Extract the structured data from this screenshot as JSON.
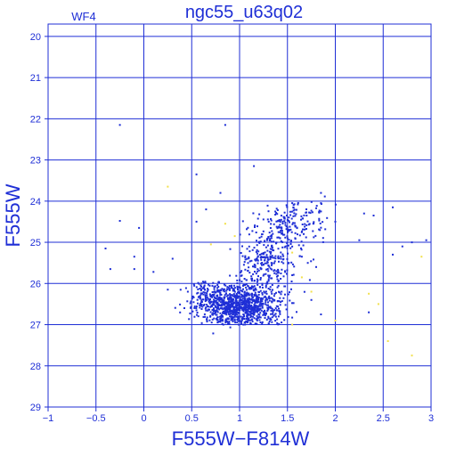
{
  "chart_data": {
    "type": "scatter",
    "title": "ngc55_u63q02",
    "panel_label": "WF4",
    "xlabel": "F555W−F814W",
    "ylabel": "F555W",
    "xlim": [
      -1,
      3
    ],
    "ylim": [
      29,
      19.7
    ],
    "xticks": [
      -1,
      -0.5,
      0,
      0.5,
      1,
      1.5,
      2,
      2.5,
      3
    ],
    "xtick_labels": [
      "−1",
      "−0.5",
      "0",
      "0.5",
      "1",
      "1.5",
      "2",
      "2.5",
      "3"
    ],
    "yticks": [
      20,
      21,
      22,
      23,
      24,
      25,
      26,
      27,
      28,
      29
    ],
    "ytick_labels": [
      "20",
      "21",
      "22",
      "23",
      "24",
      "25",
      "26",
      "27",
      "28",
      "29"
    ],
    "grid": true,
    "y_inverted": true,
    "colors": {
      "axis": "#1f2fd6",
      "primary_points": "#1f2fd6",
      "secondary_points": "#f2e04a"
    },
    "series": [
      {
        "color": "#1f2fd6",
        "points": [
          [
            -0.25,
            22.15
          ],
          [
            -0.25,
            24.48
          ],
          [
            -0.4,
            25.15
          ],
          [
            -0.35,
            25.65
          ],
          [
            -0.05,
            24.65
          ],
          [
            -0.1,
            25.35
          ],
          [
            -0.1,
            25.65
          ],
          [
            0.1,
            25.72
          ],
          [
            0.25,
            26.15
          ],
          [
            0.3,
            25.4
          ],
          [
            0.55,
            23.35
          ],
          [
            0.8,
            23.8
          ],
          [
            0.85,
            22.15
          ],
          [
            1.15,
            23.15
          ],
          [
            1.45,
            24.5
          ],
          [
            1.55,
            24.05
          ],
          [
            1.7,
            24.35
          ],
          [
            1.85,
            23.8
          ],
          [
            1.85,
            24.05
          ],
          [
            1.85,
            24.25
          ],
          [
            2.0,
            24.5
          ],
          [
            2.3,
            24.3
          ],
          [
            2.4,
            24.35
          ],
          [
            2.6,
            24.15
          ],
          [
            2.25,
            24.95
          ],
          [
            2.8,
            25.0
          ],
          [
            2.95,
            24.95
          ],
          [
            2.7,
            25.1
          ],
          [
            2.6,
            25.3
          ],
          [
            2.35,
            26.7
          ],
          [
            1.85,
            26.75
          ],
          [
            1.75,
            26.4
          ],
          [
            1.65,
            25.35
          ],
          [
            1.8,
            25.6
          ],
          [
            1.55,
            25.8
          ],
          [
            0.65,
            24.2
          ],
          [
            0.55,
            24.5
          ]
        ]
      },
      {
        "color": "#f2e04a",
        "points": [
          [
            0.25,
            23.65
          ],
          [
            0.85,
            24.55
          ],
          [
            0.7,
            25.05
          ],
          [
            0.6,
            26.0
          ],
          [
            1.55,
            25.25
          ],
          [
            1.65,
            25.85
          ],
          [
            1.75,
            26.2
          ],
          [
            1.55,
            27.0
          ],
          [
            2.0,
            26.9
          ],
          [
            2.35,
            26.25
          ],
          [
            2.45,
            26.5
          ],
          [
            2.55,
            27.4
          ],
          [
            2.8,
            27.75
          ],
          [
            2.9,
            25.35
          ],
          [
            0.95,
            24.85
          ],
          [
            1.05,
            26.05
          ]
        ]
      }
    ],
    "clusters": [
      {
        "color": "#1f2fd6",
        "count": 900,
        "center": [
          1.0,
          26.55
        ],
        "spread": [
          0.22,
          0.24
        ]
      },
      {
        "color": "#1f2fd6",
        "count": 320,
        "center": [
          1.25,
          25.55
        ],
        "spread": [
          0.16,
          0.48
        ]
      },
      {
        "color": "#1f2fd6",
        "count": 180,
        "center": [
          1.5,
          24.55
        ],
        "spread": [
          0.18,
          0.32
        ]
      },
      {
        "color": "#1f2fd6",
        "count": 120,
        "center": [
          0.7,
          26.25
        ],
        "spread": [
          0.12,
          0.18
        ]
      }
    ]
  }
}
